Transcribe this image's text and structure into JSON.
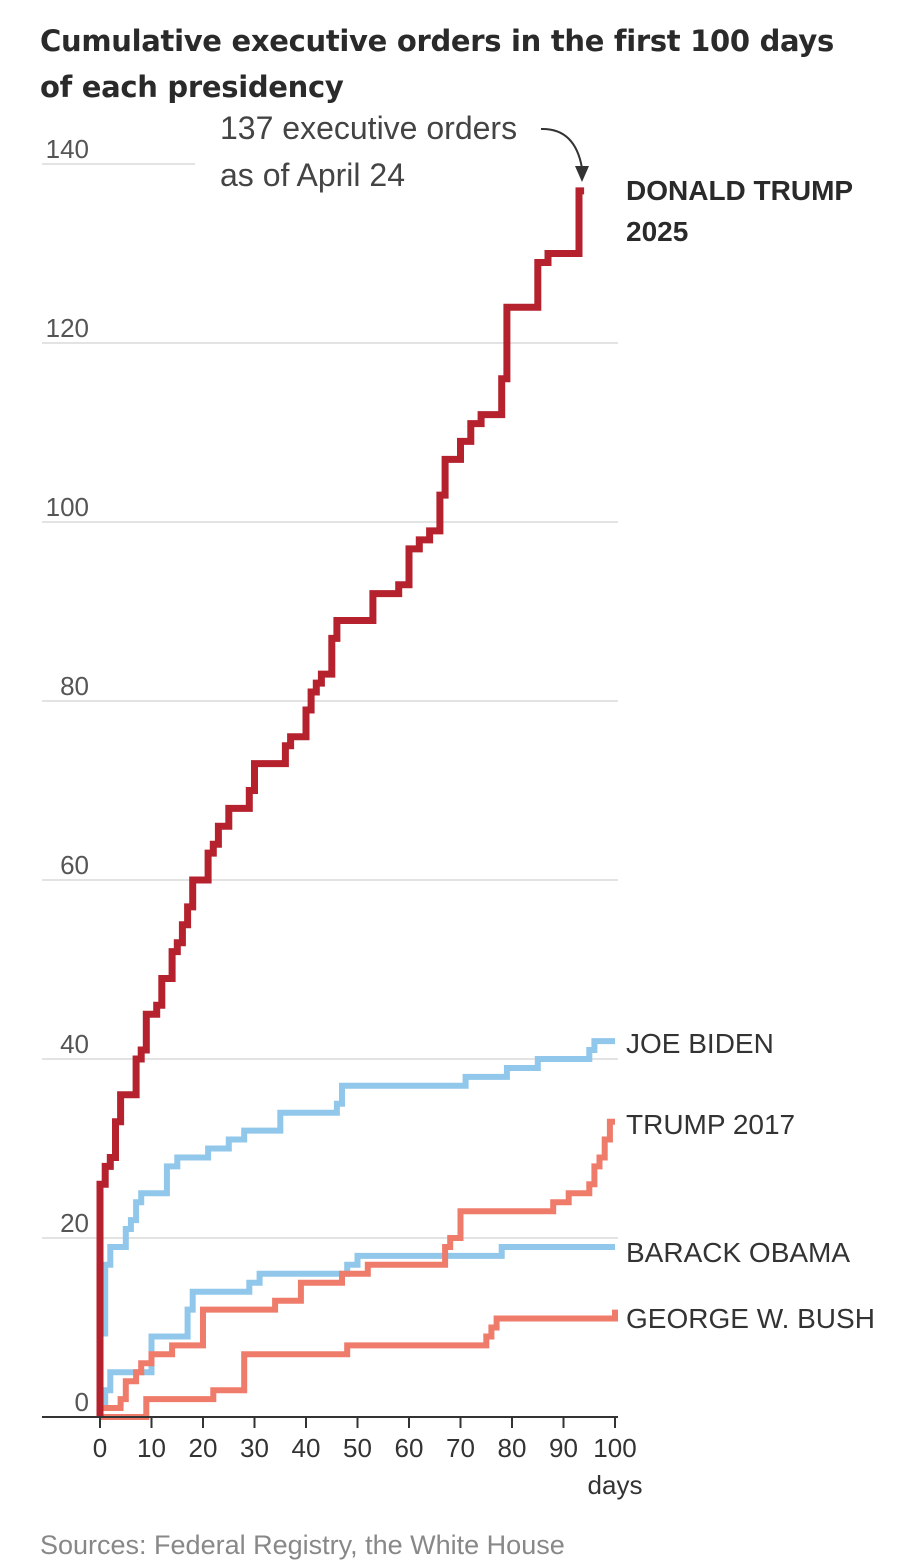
{
  "title": "Cumulative executive orders in the first 100 days of each presidency",
  "source": "Sources: Federal Registry, the White House",
  "annotation": {
    "line1": "137 executive orders",
    "line2": "as of April 24"
  },
  "colors": {
    "trump2025": "#b5222e",
    "trump2017": "#ef7b6b",
    "bush": "#ef7b6b",
    "biden": "#90c7ea",
    "obama": "#90c7ea",
    "grid": "#e3e3e3",
    "axis": "#333333"
  },
  "chart_data": {
    "type": "line",
    "step": true,
    "title": "Cumulative executive orders in the first 100 days of each presidency",
    "xlabel": "days",
    "ylabel": "",
    "xlim": [
      0,
      100
    ],
    "ylim": [
      0,
      140
    ],
    "xticks": [
      0,
      10,
      20,
      30,
      40,
      50,
      60,
      70,
      80,
      90,
      100
    ],
    "yticks": [
      0,
      20,
      40,
      60,
      80,
      100,
      120,
      140
    ],
    "grid": true,
    "legend": "direct labels at line ends",
    "series": [
      {
        "id": "trump2025",
        "name": "DONALD TRUMP 2025",
        "label_lines": [
          "DONALD TRUMP",
          "2025"
        ],
        "points": [
          [
            0,
            0
          ],
          [
            0,
            26
          ],
          [
            1,
            26
          ],
          [
            1,
            28
          ],
          [
            2,
            28
          ],
          [
            2,
            29
          ],
          [
            3,
            29
          ],
          [
            3,
            33
          ],
          [
            4,
            33
          ],
          [
            4,
            36
          ],
          [
            7,
            36
          ],
          [
            7,
            40
          ],
          [
            8,
            40
          ],
          [
            8,
            41
          ],
          [
            9,
            41
          ],
          [
            9,
            45
          ],
          [
            11,
            45
          ],
          [
            11,
            46
          ],
          [
            12,
            46
          ],
          [
            12,
            49
          ],
          [
            14,
            49
          ],
          [
            14,
            52
          ],
          [
            15,
            52
          ],
          [
            15,
            53
          ],
          [
            16,
            53
          ],
          [
            16,
            55
          ],
          [
            17,
            55
          ],
          [
            17,
            57
          ],
          [
            18,
            57
          ],
          [
            18,
            60
          ],
          [
            21,
            60
          ],
          [
            21,
            63
          ],
          [
            22,
            63
          ],
          [
            22,
            64
          ],
          [
            23,
            64
          ],
          [
            23,
            66
          ],
          [
            25,
            66
          ],
          [
            25,
            68
          ],
          [
            29,
            68
          ],
          [
            29,
            70
          ],
          [
            30,
            70
          ],
          [
            30,
            73
          ],
          [
            36,
            73
          ],
          [
            36,
            75
          ],
          [
            37,
            75
          ],
          [
            37,
            76
          ],
          [
            40,
            76
          ],
          [
            40,
            79
          ],
          [
            41,
            79
          ],
          [
            41,
            81
          ],
          [
            42,
            81
          ],
          [
            42,
            82
          ],
          [
            43,
            82
          ],
          [
            43,
            83
          ],
          [
            45,
            83
          ],
          [
            45,
            87
          ],
          [
            46,
            87
          ],
          [
            46,
            89
          ],
          [
            53,
            89
          ],
          [
            53,
            92
          ],
          [
            58,
            92
          ],
          [
            58,
            93
          ],
          [
            60,
            93
          ],
          [
            60,
            97
          ],
          [
            62,
            97
          ],
          [
            62,
            98
          ],
          [
            64,
            98
          ],
          [
            64,
            99
          ],
          [
            66,
            99
          ],
          [
            66,
            103
          ],
          [
            67,
            103
          ],
          [
            67,
            107
          ],
          [
            70,
            107
          ],
          [
            70,
            109
          ],
          [
            72,
            109
          ],
          [
            72,
            111
          ],
          [
            74,
            111
          ],
          [
            74,
            112
          ],
          [
            78,
            112
          ],
          [
            78,
            116
          ],
          [
            79,
            116
          ],
          [
            79,
            124
          ],
          [
            85,
            124
          ],
          [
            85,
            129
          ],
          [
            87,
            129
          ],
          [
            87,
            130
          ],
          [
            93,
            130
          ],
          [
            93,
            137
          ],
          [
            94,
            137
          ]
        ]
      },
      {
        "id": "biden",
        "name": "JOE BIDEN",
        "label_lines": [
          "JOE BIDEN"
        ],
        "points": [
          [
            1,
            9
          ],
          [
            1,
            17
          ],
          [
            2,
            17
          ],
          [
            2,
            19
          ],
          [
            5,
            19
          ],
          [
            5,
            21
          ],
          [
            6,
            21
          ],
          [
            6,
            22
          ],
          [
            7,
            22
          ],
          [
            7,
            24
          ],
          [
            8,
            24
          ],
          [
            8,
            25
          ],
          [
            13,
            25
          ],
          [
            13,
            28
          ],
          [
            15,
            28
          ],
          [
            15,
            29
          ],
          [
            21,
            29
          ],
          [
            21,
            30
          ],
          [
            25,
            30
          ],
          [
            25,
            31
          ],
          [
            28,
            31
          ],
          [
            28,
            32
          ],
          [
            35,
            32
          ],
          [
            35,
            34
          ],
          [
            46,
            34
          ],
          [
            46,
            35
          ],
          [
            47,
            35
          ],
          [
            47,
            37
          ],
          [
            71,
            37
          ],
          [
            71,
            38
          ],
          [
            79,
            38
          ],
          [
            79,
            39
          ],
          [
            85,
            39
          ],
          [
            85,
            40
          ],
          [
            95,
            40
          ],
          [
            95,
            41
          ],
          [
            96,
            41
          ],
          [
            96,
            42
          ],
          [
            100,
            42
          ]
        ]
      },
      {
        "id": "trump2017",
        "name": "TRUMP 2017",
        "label_lines": [
          "TRUMP 2017"
        ],
        "points": [
          [
            0,
            0
          ],
          [
            0,
            1
          ],
          [
            4,
            1
          ],
          [
            4,
            2
          ],
          [
            5,
            2
          ],
          [
            5,
            4
          ],
          [
            7,
            4
          ],
          [
            7,
            5
          ],
          [
            8,
            5
          ],
          [
            8,
            6
          ],
          [
            10,
            6
          ],
          [
            10,
            7
          ],
          [
            14,
            7
          ],
          [
            14,
            8
          ],
          [
            20,
            8
          ],
          [
            20,
            12
          ],
          [
            34,
            12
          ],
          [
            34,
            13
          ],
          [
            39,
            13
          ],
          [
            39,
            15
          ],
          [
            47,
            15
          ],
          [
            47,
            16
          ],
          [
            52,
            16
          ],
          [
            52,
            17
          ],
          [
            67,
            17
          ],
          [
            67,
            19
          ],
          [
            68,
            19
          ],
          [
            68,
            20
          ],
          [
            70,
            20
          ],
          [
            70,
            23
          ],
          [
            88,
            23
          ],
          [
            88,
            24
          ],
          [
            91,
            24
          ],
          [
            91,
            25
          ],
          [
            95,
            25
          ],
          [
            95,
            26
          ],
          [
            96,
            26
          ],
          [
            96,
            28
          ],
          [
            97,
            28
          ],
          [
            97,
            29
          ],
          [
            98,
            29
          ],
          [
            98,
            31
          ],
          [
            99,
            31
          ],
          [
            99,
            33
          ],
          [
            100,
            33
          ]
        ]
      },
      {
        "id": "obama",
        "name": "BARACK OBAMA",
        "label_lines": [
          "BARACK OBAMA"
        ],
        "points": [
          [
            1,
            1
          ],
          [
            1,
            3
          ],
          [
            2,
            3
          ],
          [
            2,
            5
          ],
          [
            10,
            5
          ],
          [
            10,
            9
          ],
          [
            17,
            9
          ],
          [
            17,
            12
          ],
          [
            18,
            12
          ],
          [
            18,
            14
          ],
          [
            29,
            14
          ],
          [
            29,
            15
          ],
          [
            31,
            15
          ],
          [
            31,
            16
          ],
          [
            48,
            16
          ],
          [
            48,
            17
          ],
          [
            50,
            17
          ],
          [
            50,
            18
          ],
          [
            78,
            18
          ],
          [
            78,
            19
          ],
          [
            100,
            19
          ]
        ]
      },
      {
        "id": "bush",
        "name": "GEORGE W. BUSH",
        "label_lines": [
          "GEORGE W. BUSH"
        ],
        "points": [
          [
            0,
            0
          ],
          [
            9,
            0
          ],
          [
            9,
            2
          ],
          [
            22,
            2
          ],
          [
            22,
            3
          ],
          [
            28,
            3
          ],
          [
            28,
            7
          ],
          [
            48,
            7
          ],
          [
            48,
            8
          ],
          [
            75,
            8
          ],
          [
            75,
            9
          ],
          [
            76,
            9
          ],
          [
            76,
            10
          ],
          [
            77,
            10
          ],
          [
            77,
            11
          ],
          [
            100,
            11
          ],
          [
            100,
            12
          ]
        ]
      }
    ]
  }
}
